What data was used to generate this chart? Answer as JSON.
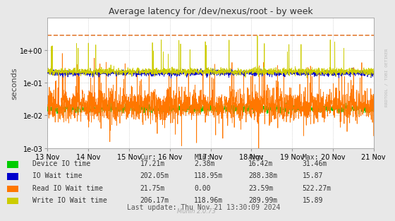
{
  "title": "Average latency for /dev/nexus/root - by week",
  "ylabel": "seconds",
  "xlabel_ticks": [
    "13 Nov",
    "14 Nov",
    "15 Nov",
    "16 Nov",
    "17 Nov",
    "18 Nov",
    "19 Nov",
    "20 Nov",
    "21 Nov"
  ],
  "ylim_min": 0.001,
  "ylim_max": 10.0,
  "bg_color": "#e8e8e8",
  "plot_bg_color": "#ffffff",
  "grid_color": "#bbbbbb",
  "dashed_line_color": "#e07020",
  "dashed_line_y": 2.8,
  "legend": [
    {
      "label": "Device IO time",
      "color": "#00cc00"
    },
    {
      "label": "IO Wait time",
      "color": "#0000cc"
    },
    {
      "label": "Read IO Wait time",
      "color": "#ff7700"
    },
    {
      "label": "Write IO Wait time",
      "color": "#cccc00"
    }
  ],
  "legend_stats": [
    {
      "cur": "17.21m",
      "min": "2.38m",
      "avg": "16.42m",
      "max": "31.46m"
    },
    {
      "cur": "202.05m",
      "min": "118.95m",
      "avg": "288.38m",
      "max": "15.87"
    },
    {
      "cur": "21.75m",
      "min": "0.00",
      "avg": "23.59m",
      "max": "522.27m"
    },
    {
      "cur": "206.17m",
      "min": "118.96m",
      "avg": "289.99m",
      "max": "15.89"
    }
  ],
  "footer": "Last update: Thu Nov 21 13:30:09 2024",
  "muninver": "Munin 2.0.73",
  "rrdtool_label": "RRDTOOL / TOBI OETIKER"
}
